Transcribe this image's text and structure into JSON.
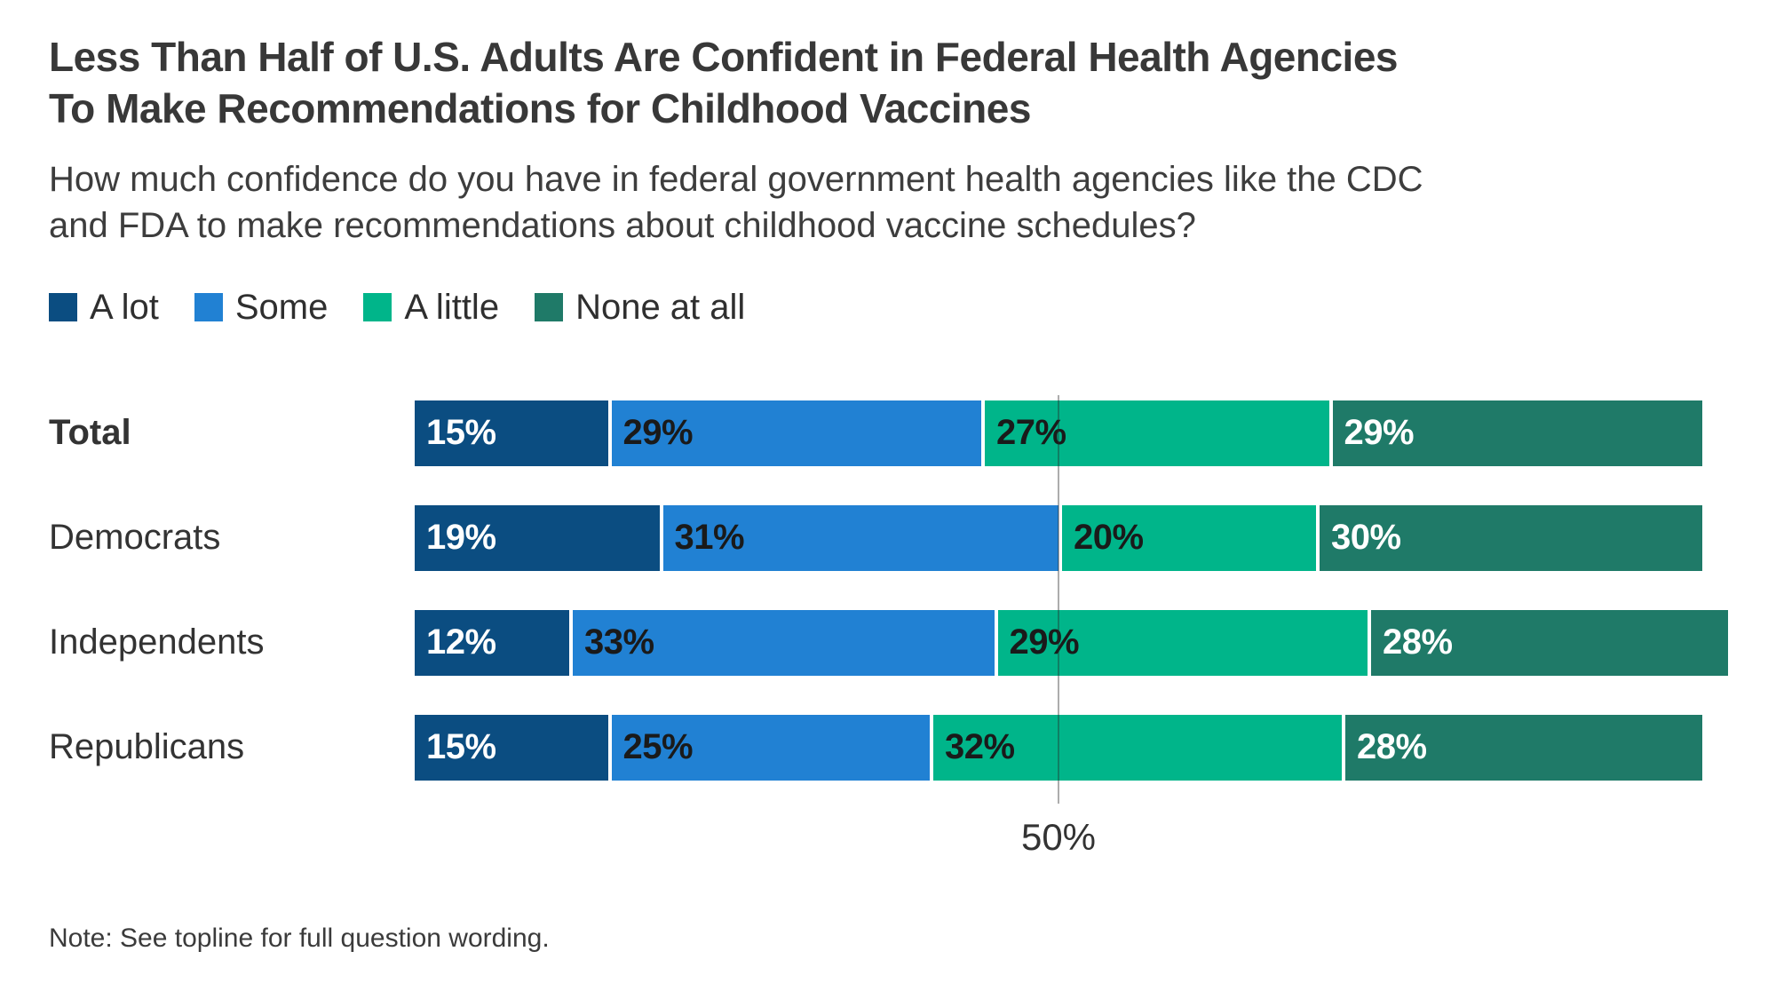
{
  "header": {
    "title": "Less Than Half of U.S. Adults Are Confident in Federal Health Agencies\nTo Make Recommendations for Childhood Vaccines",
    "subtitle": "How much confidence do you have in federal government health agencies like the CDC\nand FDA to make recommendations about childhood vaccine schedules?"
  },
  "note": "Note: See topline for full question wording.",
  "chart_data": {
    "type": "bar",
    "orientation": "horizontal-stacked",
    "categories": [
      "Total",
      "Democrats",
      "Independents",
      "Republicans"
    ],
    "bold_categories": [
      "Total"
    ],
    "series": [
      {
        "name": "A lot",
        "color": "#0b4d81",
        "text_color": "#ffffff",
        "values": [
          15,
          19,
          12,
          15
        ]
      },
      {
        "name": "Some",
        "color": "#2181d3",
        "text_color": "#1a1a1a",
        "values": [
          29,
          31,
          33,
          25
        ]
      },
      {
        "name": "A little",
        "color": "#00b58a",
        "text_color": "#1a1a1a",
        "values": [
          27,
          20,
          29,
          32
        ]
      },
      {
        "name": "None at all",
        "color": "#1f7a68",
        "text_color": "#ffffff",
        "values": [
          29,
          30,
          28,
          28
        ]
      }
    ],
    "value_suffix": "%",
    "xlim": [
      0,
      100
    ],
    "grid": "off",
    "legend_position": "top",
    "reference_line": {
      "value": 50,
      "label": "50%"
    }
  }
}
